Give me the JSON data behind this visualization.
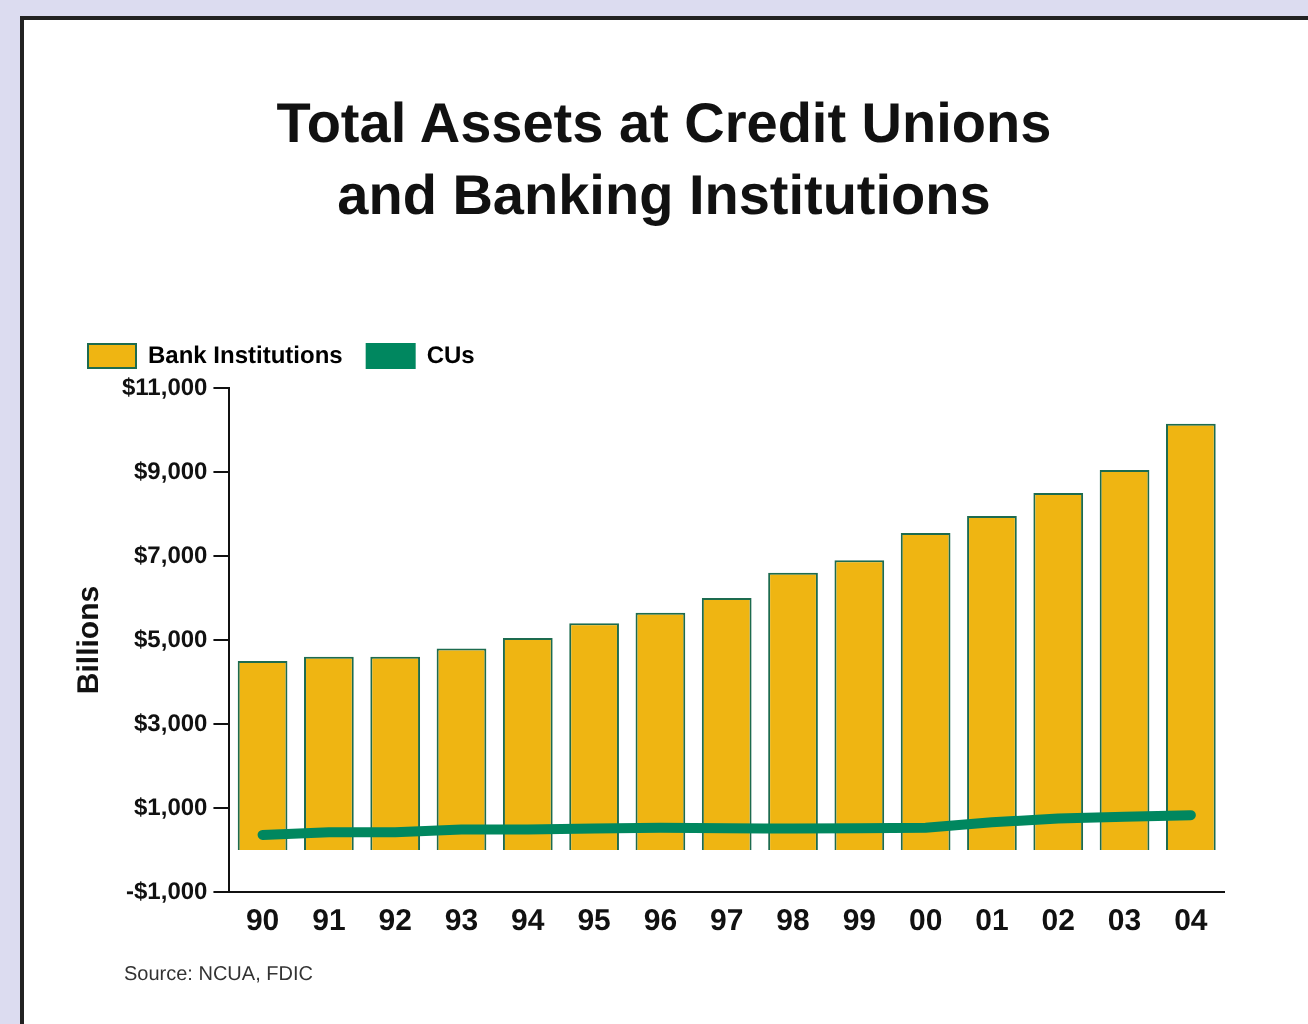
{
  "chart_data": {
    "type": "bar",
    "title": "Total Assets at Credit Unions and Banking Institutions",
    "ylabel": "Billions",
    "categories": [
      "90",
      "91",
      "92",
      "93",
      "94",
      "95",
      "96",
      "97",
      "98",
      "99",
      "00",
      "01",
      "02",
      "03",
      "04"
    ],
    "series": [
      {
        "name": "Bank Institutions",
        "color": "#efb512",
        "values": [
          4500,
          4600,
          4600,
          4800,
          5050,
          5400,
          5650,
          6000,
          6600,
          6900,
          7550,
          7950,
          8500,
          9050,
          10150
        ]
      },
      {
        "name": "CUs",
        "type": "line",
        "color": "#00875f",
        "values": [
          360,
          420,
          420,
          490,
          490,
          510,
          530,
          520,
          510,
          520,
          530,
          660,
          750,
          790,
          830
        ]
      }
    ],
    "ylim": [
      -1000,
      11000
    ],
    "yticks": [
      {
        "value": -1000,
        "label": "-$1,000"
      },
      {
        "value": 1000,
        "label": "$1,000"
      },
      {
        "value": 3000,
        "label": "$3,000"
      },
      {
        "value": 5000,
        "label": "$5,000"
      },
      {
        "value": 7000,
        "label": "$7,000"
      },
      {
        "value": 9000,
        "label": "$9,000"
      },
      {
        "value": 11000,
        "label": "$11,000"
      }
    ],
    "grid": false,
    "legend": "top left",
    "marker": "none",
    "annotations": [
      "Source: NCUA, FDIC"
    ]
  }
}
